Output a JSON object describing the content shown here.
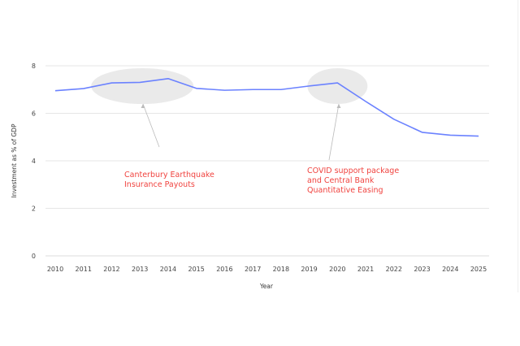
{
  "chart_data": {
    "type": "line",
    "title": "",
    "xlabel": "Year",
    "ylabel": "Investment as % of GDP",
    "x": [
      2010,
      2011,
      2012,
      2013,
      2014,
      2015,
      2016,
      2017,
      2018,
      2019,
      2020,
      2021,
      2022,
      2023,
      2024,
      2025
    ],
    "series": [
      {
        "values": [
          6.95,
          7.04,
          7.28,
          7.3,
          7.46,
          7.05,
          6.97,
          7.0,
          7.0,
          7.15,
          7.28,
          6.5,
          5.75,
          5.2,
          5.08,
          5.04
        ],
        "color": "#6b82ff"
      }
    ],
    "ylim": [
      0,
      8
    ],
    "yticks": [
      0,
      2,
      4,
      6,
      8
    ],
    "grid": true,
    "annotations": [
      {
        "lines": [
          "Canterbury Earthquake",
          "Insurance Payouts"
        ],
        "highlight_x": [
          2012,
          2014
        ],
        "arrow_to_x": 2013,
        "color": "#f0433f"
      },
      {
        "lines": [
          "COVID support package",
          "and Central Bank",
          "Quantitative Easing"
        ],
        "highlight_x": [
          2020,
          2020
        ],
        "arrow_to_x": 2020,
        "color": "#f0433f"
      }
    ]
  }
}
